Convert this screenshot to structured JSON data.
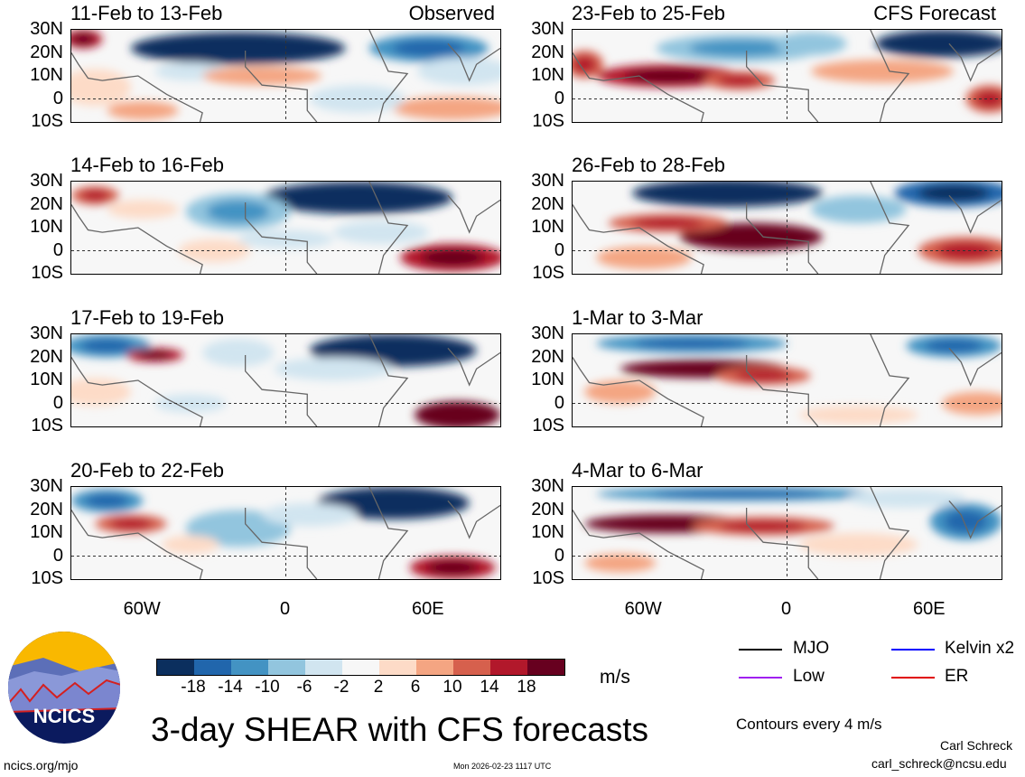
{
  "panels": [
    {
      "title": "11-Feb to 13-Feb",
      "tag": "Observed",
      "blobs": [
        [
          -20,
          22,
          45,
          7,
          -20
        ],
        [
          60,
          22,
          25,
          6,
          -12
        ],
        [
          75,
          12,
          20,
          6,
          -6
        ],
        [
          -85,
          26,
          8,
          4,
          14
        ],
        [
          -40,
          12,
          15,
          4,
          -6
        ],
        [
          -10,
          10,
          25,
          4,
          8
        ],
        [
          70,
          -4,
          25,
          5,
          8
        ],
        [
          -80,
          5,
          15,
          8,
          4
        ],
        [
          30,
          0,
          20,
          6,
          -4
        ],
        [
          -60,
          -5,
          15,
          4,
          6
        ]
      ]
    },
    {
      "title": "14-Feb to 16-Feb",
      "tag": "",
      "blobs": [
        [
          30,
          23,
          40,
          7,
          -20
        ],
        [
          -20,
          17,
          22,
          8,
          -10
        ],
        [
          -80,
          24,
          10,
          4,
          10
        ],
        [
          -60,
          18,
          15,
          4,
          4
        ],
        [
          70,
          -3,
          22,
          6,
          14
        ],
        [
          40,
          8,
          20,
          5,
          -6
        ],
        [
          -30,
          0,
          15,
          5,
          4
        ],
        [
          0,
          5,
          20,
          4,
          -4
        ]
      ]
    },
    {
      "title": "17-Feb to 19-Feb",
      "tag": "",
      "blobs": [
        [
          45,
          23,
          35,
          7,
          -20
        ],
        [
          -75,
          25,
          18,
          5,
          -12
        ],
        [
          -55,
          21,
          12,
          3,
          14
        ],
        [
          -20,
          22,
          15,
          6,
          -6
        ],
        [
          72,
          -5,
          18,
          6,
          18
        ],
        [
          20,
          15,
          25,
          5,
          -6
        ],
        [
          -80,
          5,
          15,
          6,
          4
        ],
        [
          -40,
          0,
          15,
          4,
          -4
        ]
      ]
    },
    {
      "title": "20-Feb to 22-Feb",
      "tag": "",
      "blobs": [
        [
          45,
          23,
          32,
          7,
          -20
        ],
        [
          -75,
          24,
          15,
          5,
          -14
        ],
        [
          -65,
          14,
          15,
          4,
          10
        ],
        [
          -20,
          12,
          22,
          8,
          -8
        ],
        [
          70,
          -5,
          18,
          5,
          14
        ],
        [
          10,
          18,
          20,
          5,
          -6
        ],
        [
          -40,
          5,
          12,
          4,
          4
        ]
      ]
    },
    {
      "title": "23-Feb to 25-Feb",
      "tag": "CFS Forecast",
      "blobs": [
        [
          65,
          24,
          28,
          6,
          -20
        ],
        [
          -50,
          10,
          30,
          5,
          14
        ],
        [
          -20,
          8,
          15,
          4,
          10
        ],
        [
          -20,
          22,
          35,
          6,
          -10
        ],
        [
          10,
          24,
          15,
          5,
          -8
        ],
        [
          40,
          12,
          30,
          5,
          6
        ],
        [
          85,
          0,
          10,
          6,
          10
        ],
        [
          -85,
          15,
          8,
          6,
          12
        ]
      ]
    },
    {
      "title": "26-Feb to 28-Feb",
      "tag": "",
      "blobs": [
        [
          -25,
          25,
          40,
          6,
          -20
        ],
        [
          70,
          25,
          25,
          6,
          -18
        ],
        [
          -15,
          6,
          30,
          6,
          18
        ],
        [
          -50,
          12,
          25,
          4,
          10
        ],
        [
          75,
          0,
          20,
          6,
          10
        ],
        [
          30,
          18,
          20,
          6,
          -8
        ],
        [
          -60,
          -3,
          20,
          5,
          6
        ]
      ]
    },
    {
      "title": "1-Mar to 3-Mar",
      "tag": "",
      "blobs": [
        [
          -35,
          15,
          35,
          4,
          18
        ],
        [
          -10,
          12,
          20,
          4,
          10
        ],
        [
          -40,
          26,
          40,
          4,
          -12
        ],
        [
          70,
          25,
          20,
          5,
          -14
        ],
        [
          80,
          0,
          15,
          5,
          8
        ],
        [
          -70,
          5,
          15,
          5,
          6
        ],
        [
          30,
          -5,
          25,
          4,
          4
        ]
      ]
    },
    {
      "title": "4-Mar to 6-Mar",
      "tag": "",
      "blobs": [
        [
          -50,
          14,
          35,
          4,
          18
        ],
        [
          -10,
          13,
          30,
          4,
          10
        ],
        [
          -20,
          27,
          60,
          3,
          -12
        ],
        [
          75,
          15,
          15,
          8,
          -12
        ],
        [
          50,
          25,
          25,
          4,
          -6
        ],
        [
          30,
          5,
          25,
          5,
          4
        ],
        [
          -70,
          -3,
          15,
          4,
          6
        ]
      ]
    }
  ],
  "lat_labels": [
    "30N",
    "20N",
    "10N",
    "0",
    "10S"
  ],
  "lon_labels": [
    "60W",
    "0",
    "60E"
  ],
  "colorbar": {
    "colors": [
      "#0b2f5e",
      "#2166ac",
      "#4393c3",
      "#92c5de",
      "#d1e5f0",
      "#f7f7f7",
      "#fddbc7",
      "#f4a582",
      "#d6604d",
      "#b2182b",
      "#67001f"
    ],
    "ticks": [
      "-18",
      "-14",
      "-10",
      "-6",
      "-2",
      "2",
      "6",
      "10",
      "14",
      "18"
    ],
    "units": "m/s"
  },
  "legend": [
    {
      "label": "MJO",
      "color": "#000000"
    },
    {
      "label": "Kelvin x2",
      "color": "#0000ff"
    },
    {
      "label": "Low",
      "color": "#a020f0"
    },
    {
      "label": "ER",
      "color": "#e00000"
    }
  ],
  "title": "3-day SHEAR with CFS forecasts",
  "contours": "Contours every 4 m/s",
  "logo_text": "NCICS",
  "url": "ncics.org/mjo",
  "timestamp": "Mon 2026-02-23 1117 UTC",
  "author": "Carl Schreck",
  "email": "carl_schreck@ncsu.edu"
}
